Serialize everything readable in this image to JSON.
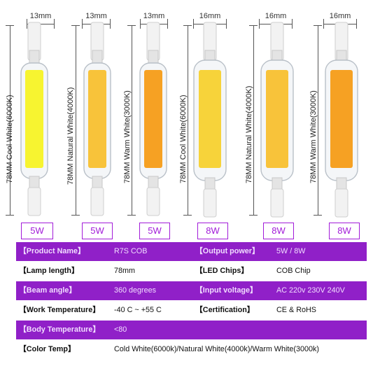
{
  "colors": {
    "purple": "#9020c8",
    "purple_text": "#a21bd9",
    "cool_white": "#f7f430",
    "natural_white": "#f8c33a",
    "warm_white": "#f6a123"
  },
  "lamps": [
    {
      "width_label": "13mm",
      "length": "78MM",
      "color_name": "Cool White(6000K)",
      "power": "5W"
    },
    {
      "width_label": "13mm",
      "length": "78MM",
      "color_name": "Natural White(4000K)",
      "power": "5W"
    },
    {
      "width_label": "13mm",
      "length": "78MM",
      "color_name": "Warm White(3000K)",
      "power": "5W"
    },
    {
      "width_label": "16mm",
      "length": "78MM",
      "color_name": "Cool White(6000K)",
      "power": "8W"
    },
    {
      "width_label": "16mm",
      "length": "78MM",
      "color_name": "Natural White(4000K)",
      "power": "8W"
    },
    {
      "width_label": "16mm",
      "length": "78MM",
      "color_name": "Warm White(3000K)",
      "power": "8W"
    }
  ],
  "specs": [
    {
      "k1": "【Product Name】",
      "v1": "R7S COB",
      "k2": "【Output power】",
      "v2": "5W / 8W"
    },
    {
      "k1": "【Lamp length】",
      "v1": "78mm",
      "k2": "【LED Chips】",
      "v2": "COB Chip"
    },
    {
      "k1": "【Beam angle】",
      "v1": "360 degrees",
      "k2": "【Input voltage】",
      "v2": "AC 220v 230V 240V"
    },
    {
      "k1": "【Work Temperature】",
      "v1": "-40 C ~ +55 C",
      "k2": "【Certification】",
      "v2": "CE & RoHS"
    },
    {
      "k1": "【Body Temperature】",
      "v1": "<80"
    },
    {
      "k1": "【Color Temp】",
      "v1": "Cold White(6000k)/Natural White(4000k)/Warm White(3000k)"
    }
  ]
}
